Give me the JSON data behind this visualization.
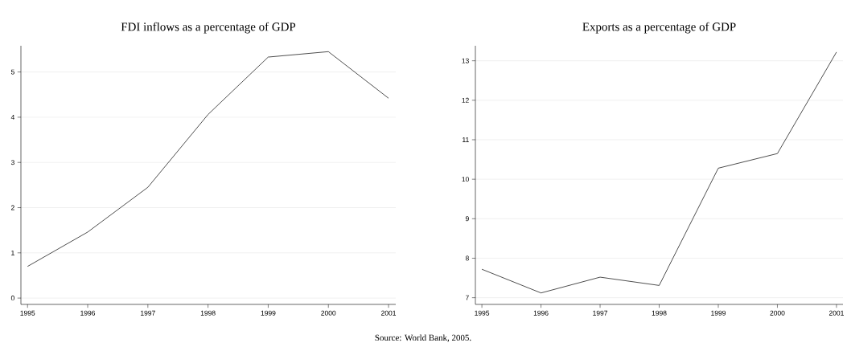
{
  "chart_data": [
    {
      "type": "line",
      "title": "FDI inflows as a percentage of GDP",
      "x": [
        1995,
        1996,
        1997,
        1998,
        1999,
        2000,
        2001
      ],
      "values": [
        0.7,
        1.46,
        2.45,
        4.06,
        5.33,
        5.45,
        4.42
      ],
      "color": "#000000",
      "xlim": [
        1994.89,
        2001.12
      ],
      "xticks": [
        1995,
        1996,
        1997,
        1998,
        1999,
        2000,
        2001
      ],
      "ylim": [
        -0.14,
        5.58
      ],
      "yticks": [
        0,
        1,
        2,
        3,
        4,
        5
      ],
      "grid": "y",
      "annotations": [
        "Source: World Bank, 2005."
      ]
    },
    {
      "type": "line",
      "title": "Exports as a percentage of GDP",
      "x": [
        1995,
        1996,
        1997,
        1998,
        1999,
        2000,
        2001
      ],
      "values": [
        7.72,
        7.12,
        7.52,
        7.31,
        10.28,
        10.65,
        13.22
      ],
      "color": "#000000",
      "xlim": [
        1994.89,
        2001.11
      ],
      "xticks": [
        1995,
        1996,
        1997,
        1998,
        1999,
        2000,
        2001
      ],
      "ylim": [
        6.83,
        13.38
      ],
      "yticks": [
        7,
        8,
        9,
        10,
        11,
        12,
        13
      ],
      "grid": "y"
    }
  ]
}
